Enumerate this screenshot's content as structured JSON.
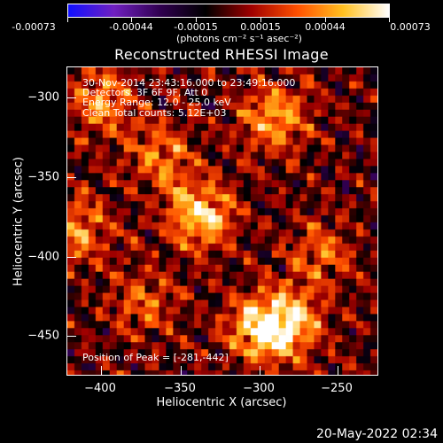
{
  "colorbar": {
    "tick_labels": [
      "-0.00073",
      "-0.00044",
      "-0.00015",
      "0.00015",
      "0.00044",
      "0.00073"
    ],
    "units": "(photons cm⁻² s⁻¹ asec⁻²)",
    "colors": [
      "#1010ff",
      "#7020c0",
      "#300050",
      "#000000",
      "#a00000",
      "#ff5000",
      "#ffc020",
      "#ffffff"
    ]
  },
  "title": "Reconstructed RHESSI Image",
  "annotations": {
    "time_range": "30-Nov-2014 23:43:16.000 to 23:49:16.000",
    "detectors": "Detectors: 3F 6F 9F, Att 0",
    "energy_range": "Energy Range: 12.0 - 25.0 keV",
    "clean_counts": "Clean     Total counts: 5.12E+03",
    "peak_position": "Position of Peak = [-281,-442]"
  },
  "chart_data": {
    "type": "heatmap",
    "title": "Reconstructed RHESSI Image",
    "xlabel": "Heliocentric X (arcsec)",
    "ylabel": "Heliocentric Y (arcsec)",
    "xlim": [
      -418,
      -226
    ],
    "ylim": [
      -474,
      -284
    ],
    "x_ticks": [
      -400,
      -350,
      -300,
      -250
    ],
    "y_ticks": [
      -300,
      -350,
      -400,
      -450
    ],
    "x_tick_labels": [
      "−400",
      "−350",
      "−300",
      "−250"
    ],
    "y_tick_labels": [
      "−300",
      "−350",
      "−400",
      "−450"
    ],
    "value_range": [
      -0.00073,
      0.00073
    ],
    "peak": [
      -281,
      -442
    ],
    "bright_sources": [
      {
        "x": -335,
        "y": -375,
        "strength": 1.0
      },
      {
        "x": -290,
        "y": -315,
        "strength": 0.8
      },
      {
        "x": -395,
        "y": -305,
        "strength": 0.7
      },
      {
        "x": -360,
        "y": -340,
        "strength": 0.6
      },
      {
        "x": -408,
        "y": -385,
        "strength": 0.6
      },
      {
        "x": -300,
        "y": -445,
        "strength": 0.8
      },
      {
        "x": -281,
        "y": -442,
        "strength": 0.95
      },
      {
        "x": -260,
        "y": -400,
        "strength": 0.5
      },
      {
        "x": -370,
        "y": -430,
        "strength": 0.5
      }
    ]
  },
  "timestamp": "20-May-2022 02:34"
}
